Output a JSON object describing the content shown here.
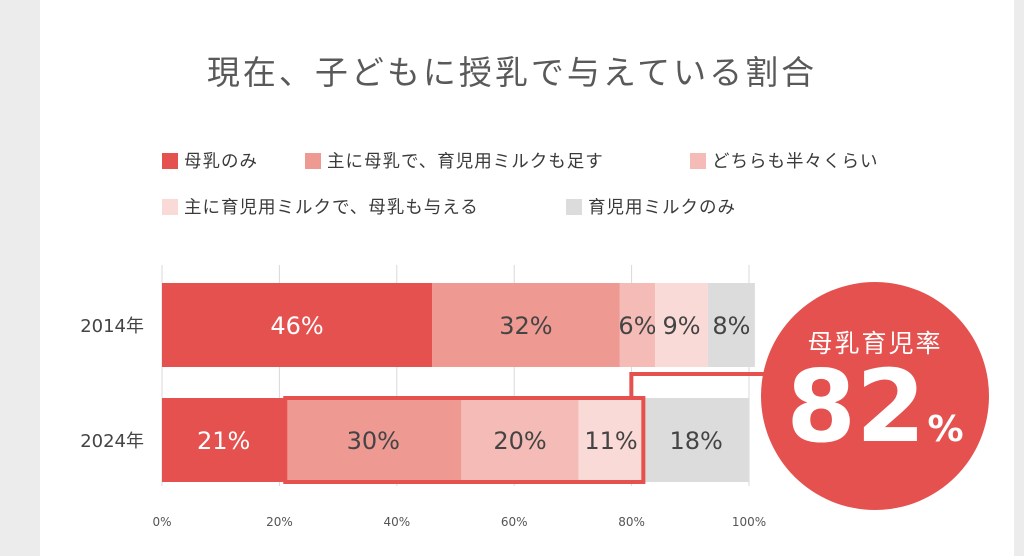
{
  "colors": {
    "breast_only": "#e5514e",
    "mainly_breast": "#ef9993",
    "half": "#f5bcb7",
    "mainly_formula": "#fadad6",
    "formula_only": "#dcdcdc",
    "highlight": "#e5514e",
    "axis_text": "#555555",
    "grid": "#d9d9d9"
  },
  "chart_data": {
    "type": "bar",
    "orientation": "horizontal",
    "stacked": true,
    "title": "現在、子どもに授乳で与えている割合",
    "categories": [
      "2014年",
      "2024年"
    ],
    "series": [
      {
        "name": "母乳のみ",
        "values": [
          46,
          21
        ],
        "labels": [
          "46%",
          "21%"
        ],
        "color_key": "breast_only"
      },
      {
        "name": "主に母乳で、育児用ミルクも足す",
        "values": [
          32,
          30
        ],
        "labels": [
          "32%",
          "30%"
        ],
        "color_key": "mainly_breast"
      },
      {
        "name": "どちらも半々くらい",
        "values": [
          6,
          20
        ],
        "labels": [
          "6%",
          "20%"
        ],
        "color_key": "half"
      },
      {
        "name": "主に育児用ミルクで、母乳も与える",
        "values": [
          9,
          11
        ],
        "labels": [
          "9%",
          "11%"
        ],
        "color_key": "mainly_formula"
      },
      {
        "name": "育児用ミルクのみ",
        "values": [
          8,
          18
        ],
        "labels": [
          "8%",
          "18%"
        ],
        "color_key": "formula_only"
      }
    ],
    "xlim": [
      0,
      100
    ],
    "xticks": [
      "0%",
      "20%",
      "40%",
      "60%",
      "80%",
      "100%"
    ],
    "grid": true,
    "legend_position": "top",
    "highlight": {
      "category": "2024年",
      "from": 21,
      "to": 82
    },
    "callout": {
      "label": "母乳育児率",
      "value": "82",
      "unit": "%"
    }
  }
}
